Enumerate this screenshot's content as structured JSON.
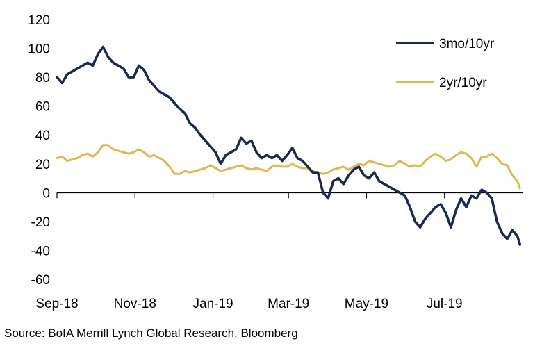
{
  "chart_data": {
    "type": "line",
    "title": "",
    "xlabel": "",
    "ylabel": "",
    "ylim": [
      -60,
      120
    ],
    "yticks": [
      120,
      100,
      80,
      60,
      40,
      20,
      0,
      -20,
      -40,
      -60
    ],
    "ytick_labels": [
      "120",
      "100",
      "80",
      "60",
      "40",
      "20",
      "0",
      "-20",
      "-40",
      "-60"
    ],
    "x_range": [
      "2018-09-01",
      "2019-08-31"
    ],
    "xticks": [
      "2018-09-01",
      "2018-11-01",
      "2019-01-01",
      "2019-03-01",
      "2019-05-01",
      "2019-07-01"
    ],
    "xtick_labels": [
      "Sep-18",
      "Nov-18",
      "Jan-19",
      "Mar-19",
      "May-19",
      "Jul-19"
    ],
    "grid": false,
    "legend_position": "top-right",
    "series": [
      {
        "name": "3mo/10yr",
        "color": "#1b2a4f",
        "x": [
          "2018-09-01",
          "2018-09-05",
          "2018-09-09",
          "2018-09-13",
          "2018-09-17",
          "2018-09-21",
          "2018-09-25",
          "2018-09-29",
          "2018-10-03",
          "2018-10-07",
          "2018-10-11",
          "2018-10-15",
          "2018-10-19",
          "2018-10-23",
          "2018-10-27",
          "2018-10-31",
          "2018-11-04",
          "2018-11-08",
          "2018-11-12",
          "2018-11-16",
          "2018-11-20",
          "2018-11-24",
          "2018-11-28",
          "2018-12-02",
          "2018-12-06",
          "2018-12-10",
          "2018-12-14",
          "2018-12-18",
          "2018-12-22",
          "2018-12-26",
          "2018-12-30",
          "2019-01-03",
          "2019-01-07",
          "2019-01-11",
          "2019-01-15",
          "2019-01-19",
          "2019-01-23",
          "2019-01-27",
          "2019-01-31",
          "2019-02-04",
          "2019-02-08",
          "2019-02-12",
          "2019-02-16",
          "2019-02-20",
          "2019-02-24",
          "2019-02-28",
          "2019-03-04",
          "2019-03-08",
          "2019-03-12",
          "2019-03-16",
          "2019-03-20",
          "2019-03-24",
          "2019-03-28",
          "2019-04-01",
          "2019-04-05",
          "2019-04-09",
          "2019-04-13",
          "2019-04-17",
          "2019-04-21",
          "2019-04-25",
          "2019-04-29",
          "2019-05-03",
          "2019-05-07",
          "2019-05-11",
          "2019-05-15",
          "2019-05-19",
          "2019-05-23",
          "2019-05-27",
          "2019-05-31",
          "2019-06-04",
          "2019-06-08",
          "2019-06-12",
          "2019-06-16",
          "2019-06-20",
          "2019-06-24",
          "2019-06-28",
          "2019-07-02",
          "2019-07-06",
          "2019-07-10",
          "2019-07-14",
          "2019-07-18",
          "2019-07-22",
          "2019-07-26",
          "2019-07-30",
          "2019-08-03",
          "2019-08-07",
          "2019-08-11",
          "2019-08-15",
          "2019-08-19",
          "2019-08-23",
          "2019-08-27",
          "2019-08-29"
        ],
        "values": [
          80,
          76,
          82,
          84,
          86,
          88,
          90,
          88,
          96,
          101,
          94,
          90,
          88,
          86,
          80,
          80,
          88,
          85,
          78,
          74,
          70,
          68,
          66,
          62,
          58,
          55,
          48,
          45,
          40,
          36,
          32,
          28,
          20,
          26,
          28,
          30,
          38,
          34,
          36,
          28,
          24,
          26,
          24,
          26,
          22,
          26,
          31,
          24,
          22,
          18,
          14,
          14,
          0,
          -4,
          8,
          10,
          6,
          12,
          16,
          18,
          12,
          10,
          14,
          8,
          6,
          4,
          2,
          0,
          -2,
          -10,
          -20,
          -24,
          -18,
          -14,
          -10,
          -8,
          -14,
          -24,
          -12,
          -4,
          -10,
          -2,
          -4,
          2,
          0,
          -4,
          -20,
          -28,
          -32,
          -26,
          -30,
          -36
        ]
      },
      {
        "name": "2yr/10yr",
        "color": "#e0b84e",
        "x": [
          "2018-09-01",
          "2018-09-05",
          "2018-09-09",
          "2018-09-13",
          "2018-09-17",
          "2018-09-21",
          "2018-09-25",
          "2018-09-29",
          "2018-10-03",
          "2018-10-07",
          "2018-10-11",
          "2018-10-15",
          "2018-10-19",
          "2018-10-23",
          "2018-10-27",
          "2018-10-31",
          "2018-11-04",
          "2018-11-08",
          "2018-11-12",
          "2018-11-16",
          "2018-11-20",
          "2018-11-24",
          "2018-11-28",
          "2018-12-02",
          "2018-12-06",
          "2018-12-10",
          "2018-12-14",
          "2018-12-18",
          "2018-12-22",
          "2018-12-26",
          "2018-12-30",
          "2019-01-03",
          "2019-01-07",
          "2019-01-11",
          "2019-01-15",
          "2019-01-19",
          "2019-01-23",
          "2019-01-27",
          "2019-01-31",
          "2019-02-04",
          "2019-02-08",
          "2019-02-12",
          "2019-02-16",
          "2019-02-20",
          "2019-02-24",
          "2019-02-28",
          "2019-03-04",
          "2019-03-08",
          "2019-03-12",
          "2019-03-16",
          "2019-03-20",
          "2019-03-24",
          "2019-03-28",
          "2019-04-01",
          "2019-04-05",
          "2019-04-09",
          "2019-04-13",
          "2019-04-17",
          "2019-04-21",
          "2019-04-25",
          "2019-04-29",
          "2019-05-03",
          "2019-05-07",
          "2019-05-11",
          "2019-05-15",
          "2019-05-19",
          "2019-05-23",
          "2019-05-27",
          "2019-05-31",
          "2019-06-04",
          "2019-06-08",
          "2019-06-12",
          "2019-06-16",
          "2019-06-20",
          "2019-06-24",
          "2019-06-28",
          "2019-07-02",
          "2019-07-06",
          "2019-07-10",
          "2019-07-14",
          "2019-07-18",
          "2019-07-22",
          "2019-07-26",
          "2019-07-30",
          "2019-08-03",
          "2019-08-07",
          "2019-08-11",
          "2019-08-15",
          "2019-08-19",
          "2019-08-23",
          "2019-08-27",
          "2019-08-29"
        ],
        "values": [
          24,
          25,
          22,
          23,
          24,
          26,
          27,
          25,
          28,
          33,
          33,
          30,
          29,
          28,
          27,
          28,
          30,
          28,
          25,
          26,
          24,
          22,
          18,
          13,
          13,
          15,
          14,
          15,
          16,
          17,
          19,
          17,
          15,
          16,
          17,
          18,
          19,
          17,
          16,
          17,
          16,
          15,
          18,
          19,
          18,
          18,
          20,
          18,
          17,
          17,
          15,
          14,
          13,
          14,
          16,
          17,
          18,
          16,
          18,
          20,
          19,
          22,
          21,
          20,
          19,
          18,
          19,
          22,
          20,
          18,
          19,
          18,
          22,
          25,
          27,
          25,
          22,
          23,
          26,
          28,
          27,
          24,
          18,
          25,
          25,
          27,
          24,
          20,
          19,
          12,
          8,
          3
        ]
      }
    ]
  },
  "source": "Source:  BofA Merrill Lynch Global Research, Bloomberg"
}
